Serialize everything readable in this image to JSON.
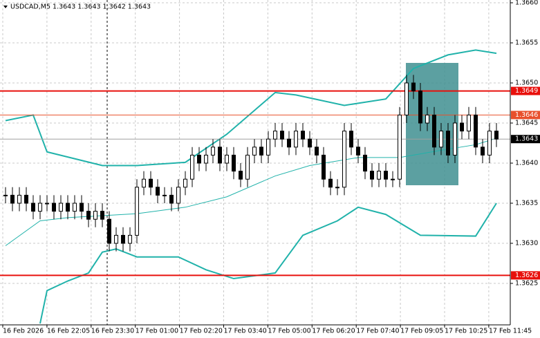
{
  "chart_data": {
    "type": "candlestick",
    "title": "USDCAD,M5  1.3643 1.3643 1.3642 1.3643",
    "open": [
      1.3636,
      1.3636,
      1.3635,
      1.3636,
      1.3635,
      1.3634,
      1.3635,
      1.3635,
      1.3634,
      1.3635,
      1.3634,
      1.3635,
      1.3634,
      1.3633,
      1.3634,
      1.3633,
      1.363,
      1.3631,
      1.363,
      1.3631,
      1.3637,
      1.3638,
      1.3637,
      1.3636,
      1.3636,
      1.3635,
      1.3637,
      1.3638,
      1.3641,
      1.364,
      1.3641,
      1.3642,
      1.364,
      1.3641,
      1.3639,
      1.3638,
      1.3641,
      1.3642,
      1.3641,
      1.3643,
      1.3644,
      1.3643,
      1.3642,
      1.3644,
      1.3643,
      1.3642,
      1.3641,
      1.3638,
      1.3637,
      1.3637,
      1.3644,
      1.3642,
      1.3641,
      1.3639,
      1.3638,
      1.3639,
      1.3638,
      1.3638,
      1.3646,
      1.365,
      1.3649,
      1.3645,
      1.3646,
      1.3642,
      1.3644,
      1.3641,
      1.3645,
      1.3644,
      1.3646,
      1.3642,
      1.3641,
      1.3644
    ],
    "high": [
      1.3637,
      1.3637,
      1.3637,
      1.3637,
      1.3636,
      1.3636,
      1.3636,
      1.3636,
      1.3636,
      1.3636,
      1.3636,
      1.3636,
      1.3635,
      1.3635,
      1.3635,
      1.3634,
      1.3632,
      1.3632,
      1.3632,
      1.3638,
      1.3639,
      1.3639,
      1.3638,
      1.3637,
      1.3637,
      1.3638,
      1.3639,
      1.3642,
      1.3642,
      1.3642,
      1.3643,
      1.3643,
      1.3642,
      1.3642,
      1.364,
      1.3642,
      1.3643,
      1.3643,
      1.3644,
      1.3645,
      1.3645,
      1.3644,
      1.3645,
      1.3645,
      1.3644,
      1.3643,
      1.3642,
      1.3639,
      1.3638,
      1.3645,
      1.3645,
      1.3643,
      1.3642,
      1.364,
      1.364,
      1.364,
      1.3639,
      1.3647,
      1.3651,
      1.3651,
      1.365,
      1.3647,
      1.3647,
      1.3645,
      1.3645,
      1.3646,
      1.3646,
      1.3647,
      1.3647,
      1.3643,
      1.3645,
      1.3645
    ],
    "low": [
      1.3635,
      1.3634,
      1.3634,
      1.3634,
      1.3633,
      1.3633,
      1.3634,
      1.3633,
      1.3633,
      1.3633,
      1.3633,
      1.3633,
      1.3632,
      1.3632,
      1.3632,
      1.3629,
      1.3629,
      1.3629,
      1.3629,
      1.363,
      1.3636,
      1.3636,
      1.3635,
      1.3635,
      1.3634,
      1.3634,
      1.3636,
      1.3637,
      1.3639,
      1.3639,
      1.364,
      1.3639,
      1.3639,
      1.3638,
      1.3637,
      1.3637,
      1.364,
      1.364,
      1.364,
      1.3642,
      1.3642,
      1.3641,
      1.3641,
      1.3642,
      1.3641,
      1.364,
      1.3637,
      1.3636,
      1.3636,
      1.3636,
      1.3641,
      1.364,
      1.3638,
      1.3637,
      1.3637,
      1.3637,
      1.3637,
      1.3637,
      1.3645,
      1.3648,
      1.3644,
      1.3644,
      1.3641,
      1.3641,
      1.364,
      1.364,
      1.3643,
      1.3643,
      1.3641,
      1.364,
      1.364,
      1.3642
    ],
    "close": [
      1.3636,
      1.3635,
      1.3636,
      1.3635,
      1.3634,
      1.3635,
      1.3635,
      1.3634,
      1.3635,
      1.3634,
      1.3635,
      1.3634,
      1.3633,
      1.3634,
      1.3633,
      1.363,
      1.3631,
      1.363,
      1.3631,
      1.3637,
      1.3638,
      1.3637,
      1.3636,
      1.3636,
      1.3635,
      1.3637,
      1.3638,
      1.3641,
      1.364,
      1.3641,
      1.3642,
      1.364,
      1.3641,
      1.3639,
      1.3638,
      1.3641,
      1.3642,
      1.3641,
      1.3643,
      1.3644,
      1.3643,
      1.3642,
      1.3644,
      1.3643,
      1.3642,
      1.3641,
      1.3638,
      1.3637,
      1.3637,
      1.3644,
      1.3642,
      1.3641,
      1.3639,
      1.3638,
      1.3639,
      1.3638,
      1.3638,
      1.3646,
      1.365,
      1.3649,
      1.3645,
      1.3646,
      1.3642,
      1.3644,
      1.3641,
      1.3645,
      1.3644,
      1.3646,
      1.3642,
      1.3641,
      1.3644,
      1.3643
    ],
    "bands": [
      {
        "color": "#20b2aa",
        "width": 2,
        "x": [
          0,
          4,
          6,
          14,
          19,
          26,
          32,
          39,
          42,
          49,
          55,
          59,
          64,
          68,
          71
        ],
        "values": [
          1.36453,
          1.3646,
          1.36414,
          1.36397,
          1.36397,
          1.36401,
          1.36436,
          1.36488,
          1.36485,
          1.36472,
          1.3648,
          1.36518,
          1.36535,
          1.36541,
          1.36537
        ]
      },
      {
        "color": "#20b2aa",
        "width": 1,
        "x": [
          0,
          5,
          9,
          19,
          26,
          32,
          39,
          44,
          51,
          57,
          63,
          68,
          71
        ],
        "values": [
          1.36297,
          1.36328,
          1.36332,
          1.36337,
          1.36345,
          1.36358,
          1.36384,
          1.36397,
          1.36407,
          1.36407,
          1.36416,
          1.36423,
          1.36431
        ]
      },
      {
        "color": "#20b2aa",
        "width": 2,
        "x": [
          5,
          6,
          9,
          12,
          14,
          16,
          19,
          25,
          29,
          33,
          39,
          43,
          48,
          51,
          55,
          60,
          68,
          71
        ],
        "values": [
          1.362,
          1.36241,
          1.36253,
          1.36263,
          1.36289,
          1.36293,
          1.36283,
          1.36283,
          1.36267,
          1.36256,
          1.36263,
          1.3631,
          1.36328,
          1.36345,
          1.36336,
          1.3631,
          1.36309,
          1.3635
        ]
      }
    ],
    "levels": [
      {
        "value": 1.3649,
        "color": "#e8100c",
        "width": 2
      },
      {
        "value": 1.3646,
        "color": "#e8502c",
        "width": 1
      },
      {
        "value": 1.3626,
        "color": "#e8100c",
        "width": 2
      },
      {
        "value": 1.3643,
        "color": "#a0a0a0",
        "width": 1,
        "label_color": "#000000"
      }
    ],
    "ylim": [
      1.362,
      1.366
    ],
    "yticks": [
      1.3625,
      {
        "value": 1.363,
        "label": "1.3630"
      },
      1.3635,
      {
        "value": 1.364,
        "label": "1.3640"
      },
      1.3645,
      {
        "value": 1.365,
        "label": "1.3650"
      },
      1.3655,
      {
        "value": 1.366,
        "label": "1.3660"
      }
    ],
    "time_labels": [
      "16 Feb 2026",
      "16 Feb 22:05",
      "16 Feb 23:30",
      "17 Feb 01:00",
      "17 Feb 02:20",
      "17 Feb 03:40",
      "17 Feb 05:00",
      "17 Feb 06:20",
      "17 Feb 07:40",
      "17 Feb 09:05",
      "17 Feb 10:25",
      "17 Feb 11:45"
    ],
    "grid": true
  }
}
